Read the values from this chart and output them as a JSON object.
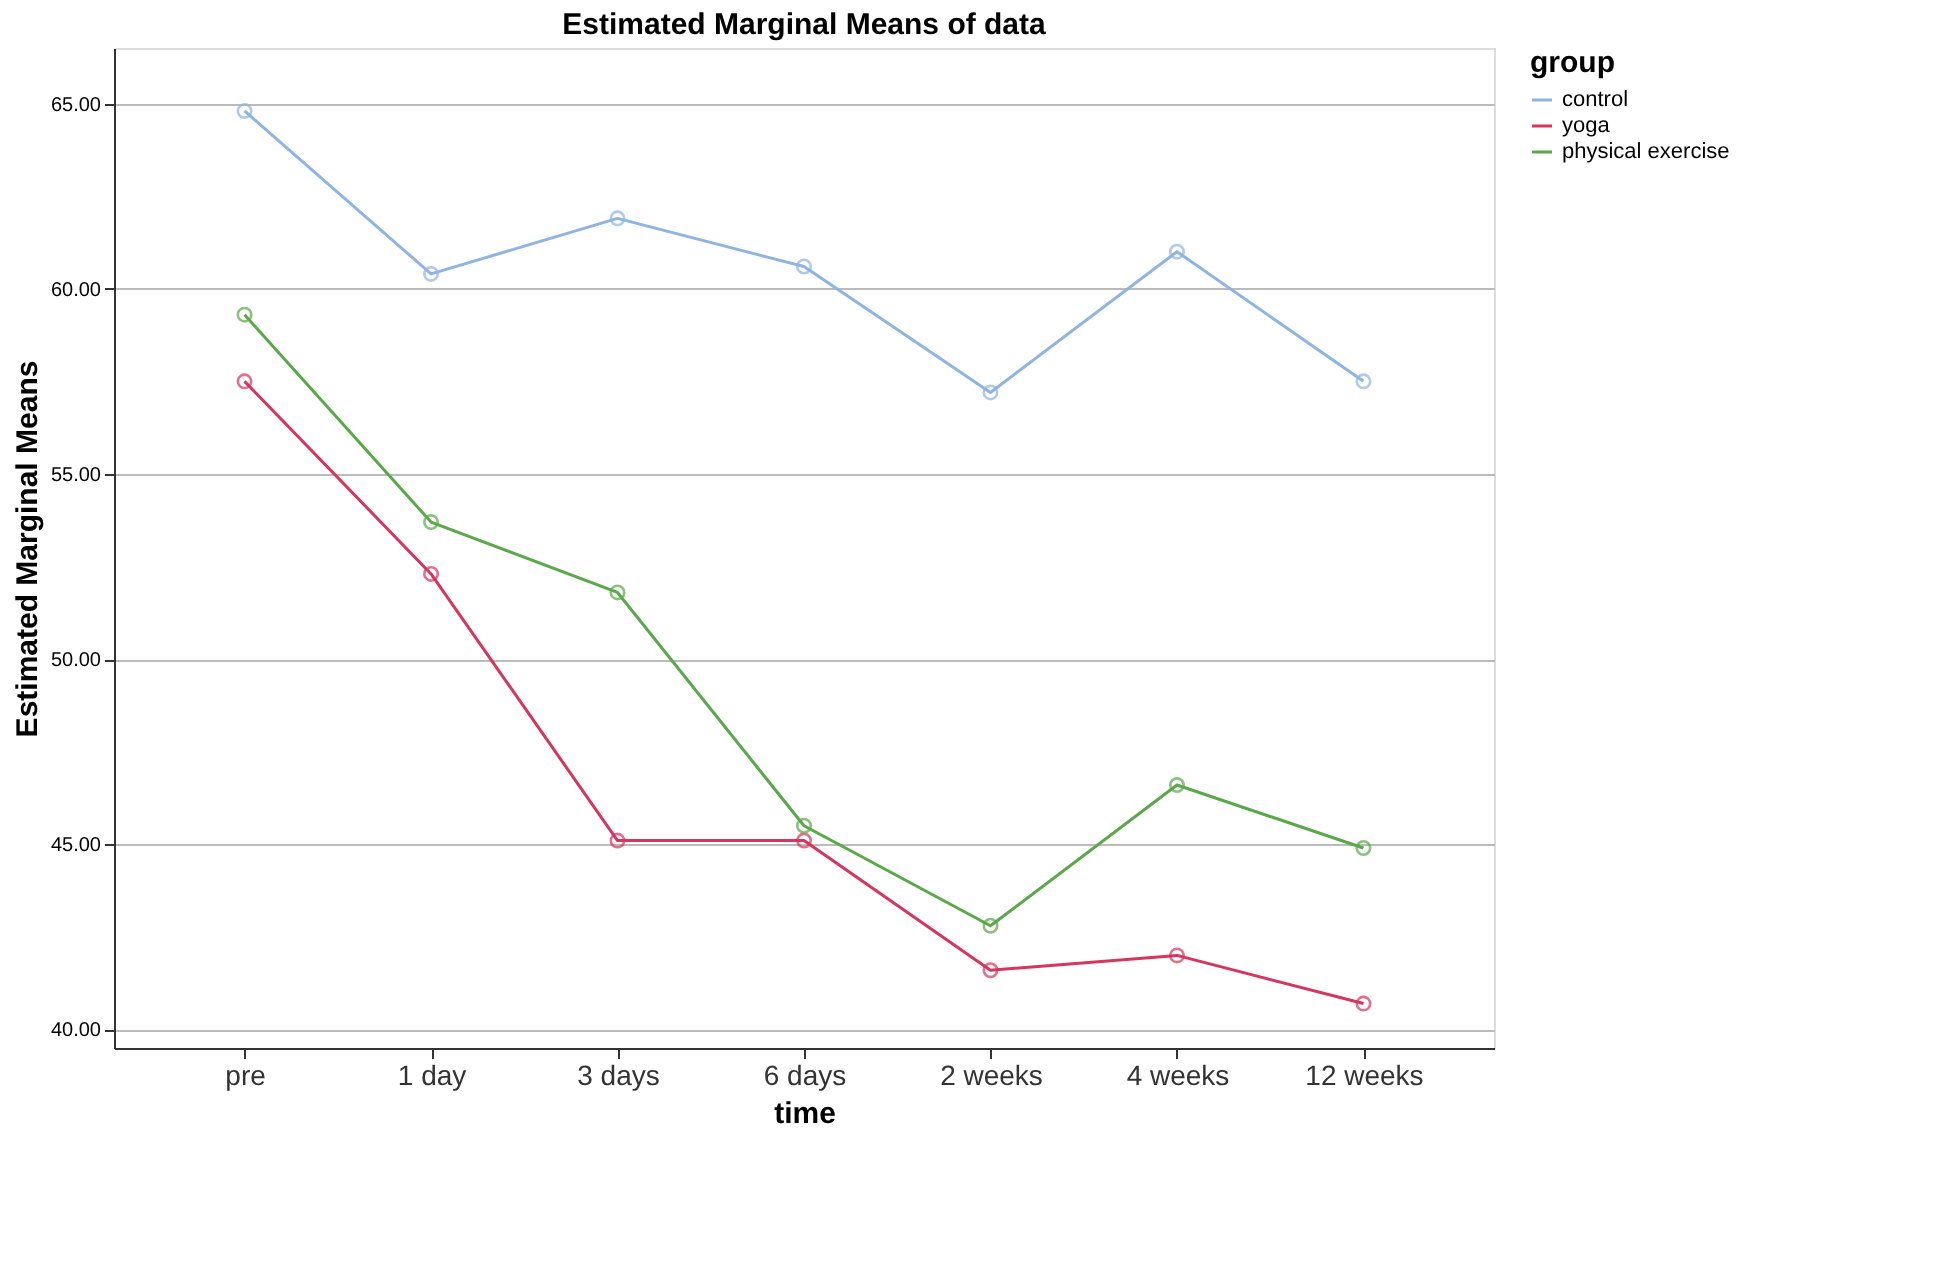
{
  "chart_data": {
    "type": "line",
    "title": "Estimated Marginal Means of data",
    "xlabel": "time",
    "ylabel": "Estimated Marginal Means",
    "legend_title": "group",
    "categories": [
      "pre",
      "1 day",
      "3 days",
      "6 days",
      "2 weeks",
      "4 weeks",
      "12 weeks"
    ],
    "series": [
      {
        "name": "control",
        "color": "#8fb4e3",
        "values": [
          64.8,
          60.4,
          61.9,
          60.6,
          57.2,
          61.0,
          57.5
        ]
      },
      {
        "name": "yoga",
        "color": "#d6355e",
        "values": [
          57.5,
          52.3,
          45.1,
          45.1,
          41.6,
          42.0,
          40.7
        ]
      },
      {
        "name": "physical exercise",
        "color": "#5aa84a",
        "values": [
          59.3,
          53.7,
          51.8,
          45.5,
          42.8,
          46.6,
          44.9
        ]
      }
    ],
    "ylim": [
      39.5,
      66.5
    ],
    "yticks": [
      {
        "value": 40,
        "label": "40.00"
      },
      {
        "value": 45,
        "label": "45.00"
      },
      {
        "value": 50,
        "label": "50.00"
      },
      {
        "value": 55,
        "label": "55.00"
      },
      {
        "value": 60,
        "label": "60.00"
      },
      {
        "value": 65,
        "label": "65.00"
      }
    ],
    "grid": "y",
    "legend": "top right",
    "marker": "circle",
    "line_style": "solid"
  }
}
